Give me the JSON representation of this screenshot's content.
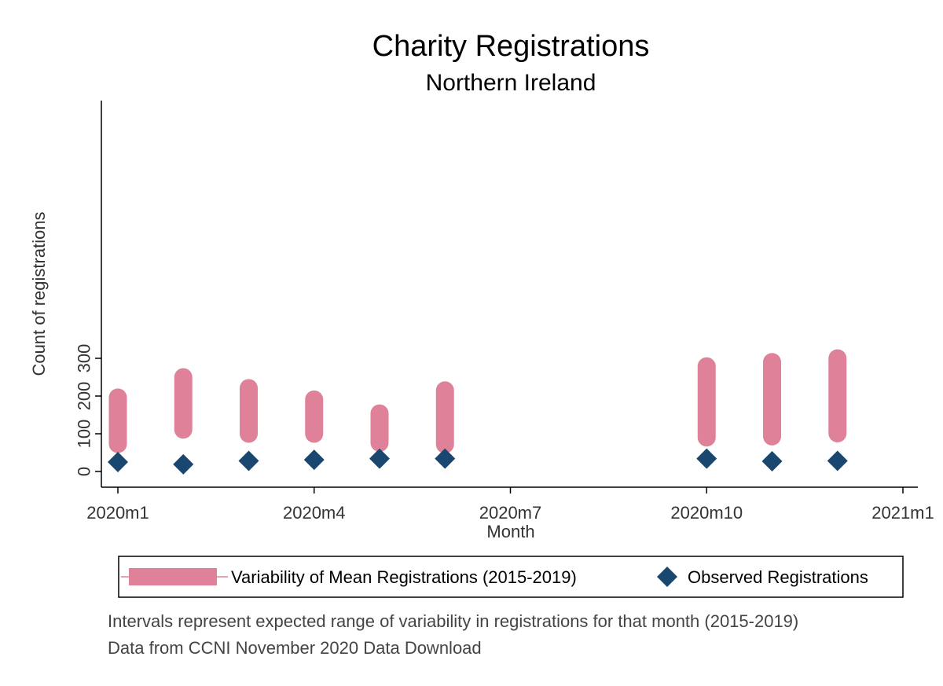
{
  "chart_data": {
    "type": "range_bar_scatter",
    "title": "Charity Registrations",
    "subtitle": "Northern Ireland",
    "xlabel": "Month",
    "ylabel": "Count of registrations",
    "xlim": [
      "2020m1",
      "2021m1"
    ],
    "ylim": [
      0,
      300
    ],
    "x_ticks": [
      "2020m1",
      "2020m4",
      "2020m7",
      "2020m10",
      "2021m1"
    ],
    "y_ticks": [
      0,
      100,
      200,
      300
    ],
    "grid": false,
    "legend_position": "bottom",
    "series": [
      {
        "name": "Variability of Mean Registrations (2015-2019)",
        "kind": "range",
        "color": "#df8299",
        "points": [
          {
            "x": "2020m1",
            "low": 73,
            "high": 196
          },
          {
            "x": "2020m2",
            "low": 111,
            "high": 250
          },
          {
            "x": "2020m3",
            "low": 100,
            "high": 221
          },
          {
            "x": "2020m4",
            "low": 100,
            "high": 191
          },
          {
            "x": "2020m5",
            "low": 76,
            "high": 154
          },
          {
            "x": "2020m6",
            "low": 72,
            "high": 215
          },
          {
            "x": "2020m10",
            "low": 90,
            "high": 279
          },
          {
            "x": "2020m11",
            "low": 93,
            "high": 290
          },
          {
            "x": "2020m12",
            "low": 101,
            "high": 300
          }
        ]
      },
      {
        "name": "Observed Registrations",
        "kind": "scatter",
        "marker": "diamond",
        "color": "#1a476f",
        "points": [
          {
            "x": "2020m1",
            "y": 25
          },
          {
            "x": "2020m2",
            "y": 19
          },
          {
            "x": "2020m3",
            "y": 28
          },
          {
            "x": "2020m4",
            "y": 31
          },
          {
            "x": "2020m5",
            "y": 34
          },
          {
            "x": "2020m6",
            "y": 34
          },
          {
            "x": "2020m10",
            "y": 34
          },
          {
            "x": "2020m11",
            "y": 27
          },
          {
            "x": "2020m12",
            "y": 28
          }
        ]
      }
    ]
  },
  "notes": [
    "Intervals represent expected range of variability in registrations for that month (2015-2019)",
    "Data from CCNI November 2020 Data Download"
  ]
}
